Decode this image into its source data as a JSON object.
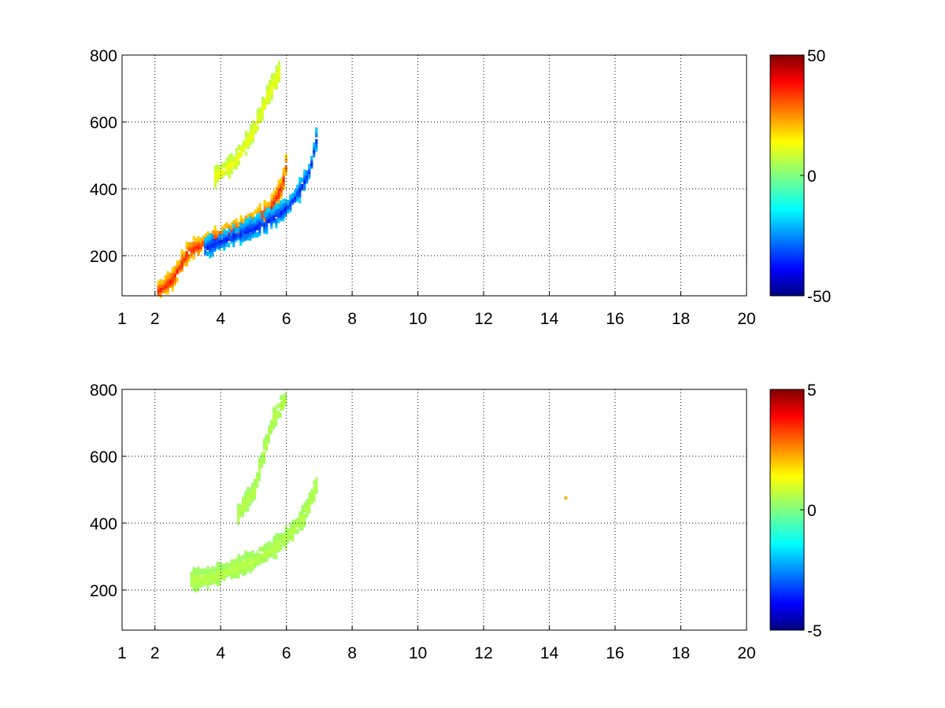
{
  "chart_data": [
    {
      "type": "heatmap",
      "panel": "top",
      "xlim": [
        1,
        20
      ],
      "ylim": [
        80,
        800
      ],
      "x_ticks": [
        1,
        2,
        4,
        6,
        8,
        10,
        12,
        14,
        16,
        18,
        20
      ],
      "y_ticks": [
        200,
        400,
        600,
        800
      ],
      "grid": true,
      "colormap": "jet",
      "colorbar": {
        "range": [
          -50,
          50
        ],
        "ticks": [
          50,
          0,
          -50
        ]
      },
      "features": [
        {
          "name": "ridge-positive",
          "x": [
            2.0,
            2.5,
            3.0,
            3.5,
            4.0,
            4.5,
            5.0,
            5.5,
            5.85,
            6.0
          ],
          "y": [
            90,
            130,
            215,
            240,
            260,
            280,
            305,
            345,
            410,
            500
          ],
          "value": 35
        },
        {
          "name": "ridge-negative",
          "x": [
            3.5,
            4.0,
            4.5,
            5.0,
            5.5,
            6.0,
            6.4,
            6.7,
            6.9
          ],
          "y": [
            225,
            245,
            265,
            285,
            310,
            345,
            400,
            460,
            560
          ],
          "value": -35
        },
        {
          "name": "faint-upper-arc",
          "x": [
            3.8,
            4.4,
            5.0,
            5.4,
            5.8
          ],
          "y": [
            440,
            480,
            580,
            680,
            760
          ],
          "value": 12
        }
      ]
    },
    {
      "type": "heatmap",
      "panel": "bottom",
      "xlim": [
        1,
        20
      ],
      "ylim": [
        80,
        800
      ],
      "x_ticks": [
        1,
        2,
        4,
        6,
        8,
        10,
        12,
        14,
        16,
        18,
        20
      ],
      "y_ticks": [
        200,
        400,
        600,
        800
      ],
      "grid": true,
      "colormap": "jet",
      "colorbar": {
        "range": [
          -5,
          5
        ],
        "ticks": [
          5,
          0,
          -5
        ]
      },
      "features": [
        {
          "name": "main-band",
          "x": [
            3.0,
            3.5,
            4.0,
            4.5,
            5.0,
            5.5,
            6.0,
            6.5,
            6.9
          ],
          "y": [
            230,
            235,
            250,
            270,
            290,
            320,
            360,
            420,
            520
          ],
          "value": 0.6
        },
        {
          "name": "upper-arc",
          "x": [
            4.5,
            5.0,
            5.3,
            5.6,
            6.0
          ],
          "y": [
            430,
            500,
            620,
            720,
            780
          ],
          "value": 0.6
        }
      ],
      "outliers": [
        {
          "x": 14.5,
          "y": 475,
          "value": 2
        }
      ]
    }
  ]
}
